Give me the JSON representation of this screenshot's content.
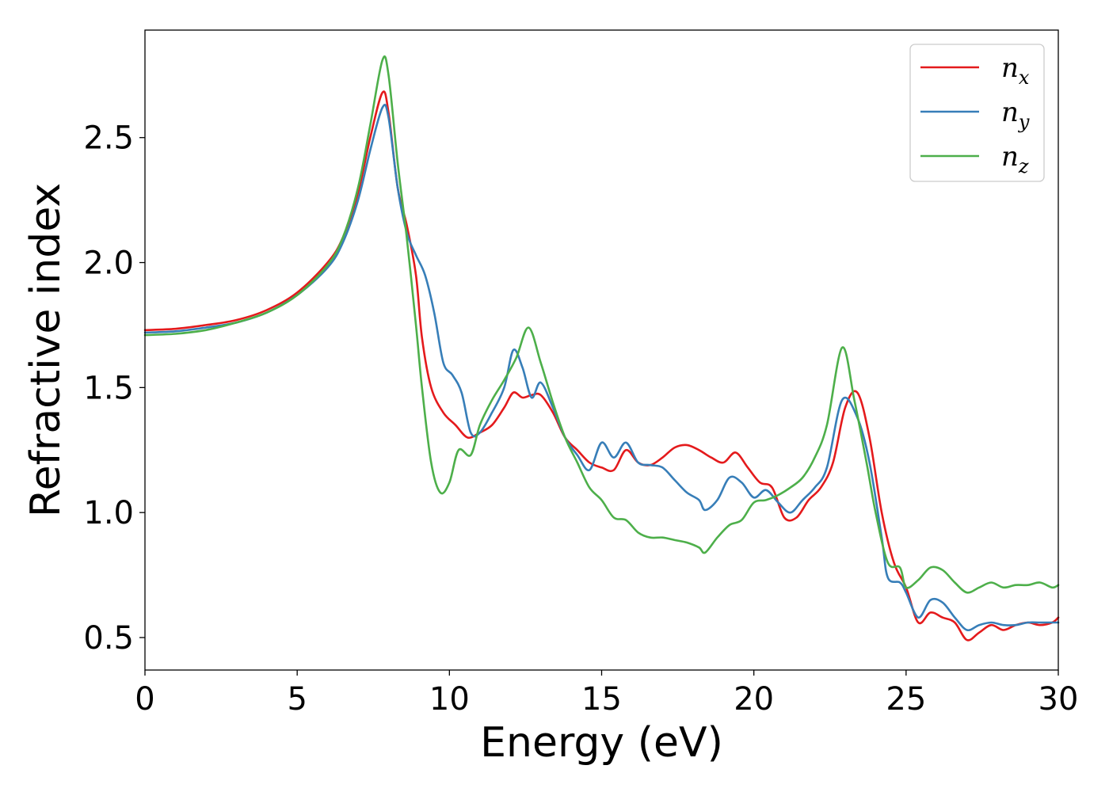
{
  "chart_data": {
    "type": "line",
    "title": "",
    "xlabel": "Energy (eV)",
    "ylabel": "Refractive index",
    "xlim": [
      0,
      30
    ],
    "ylim": [
      0.37,
      2.93
    ],
    "xticks": [
      0,
      5,
      10,
      15,
      20,
      25,
      30
    ],
    "xtick_labels": [
      "0",
      "5",
      "10",
      "15",
      "20",
      "25",
      "30"
    ],
    "yticks": [
      0.5,
      1.0,
      1.5,
      2.0,
      2.5
    ],
    "ytick_labels": [
      "0.5",
      "1.0",
      "1.5",
      "2.0",
      "2.5"
    ],
    "grid": false,
    "legend_position": "top-right",
    "series": [
      {
        "name": "n_x",
        "label_main": "n",
        "label_sub": "x",
        "color": "#e41a1c",
        "points": [
          [
            0,
            1.73
          ],
          [
            1,
            1.735
          ],
          [
            2,
            1.75
          ],
          [
            3,
            1.77
          ],
          [
            4,
            1.81
          ],
          [
            5,
            1.88
          ],
          [
            6,
            2.0
          ],
          [
            6.5,
            2.1
          ],
          [
            7,
            2.28
          ],
          [
            7.4,
            2.5
          ],
          [
            7.8,
            2.68
          ],
          [
            8.0,
            2.6
          ],
          [
            8.3,
            2.3
          ],
          [
            8.6,
            2.15
          ],
          [
            8.9,
            1.95
          ],
          [
            9.1,
            1.7
          ],
          [
            9.4,
            1.5
          ],
          [
            9.8,
            1.4
          ],
          [
            10.2,
            1.35
          ],
          [
            10.6,
            1.3
          ],
          [
            11.0,
            1.32
          ],
          [
            11.4,
            1.35
          ],
          [
            11.8,
            1.42
          ],
          [
            12.1,
            1.48
          ],
          [
            12.4,
            1.46
          ],
          [
            12.7,
            1.47
          ],
          [
            13.0,
            1.47
          ],
          [
            13.4,
            1.4
          ],
          [
            13.8,
            1.3
          ],
          [
            14.2,
            1.25
          ],
          [
            14.6,
            1.2
          ],
          [
            15.0,
            1.18
          ],
          [
            15.4,
            1.17
          ],
          [
            15.8,
            1.25
          ],
          [
            16.2,
            1.2
          ],
          [
            16.6,
            1.19
          ],
          [
            17.0,
            1.22
          ],
          [
            17.4,
            1.26
          ],
          [
            17.8,
            1.27
          ],
          [
            18.2,
            1.25
          ],
          [
            18.6,
            1.22
          ],
          [
            19.0,
            1.2
          ],
          [
            19.4,
            1.24
          ],
          [
            19.8,
            1.18
          ],
          [
            20.2,
            1.12
          ],
          [
            20.6,
            1.1
          ],
          [
            21.0,
            0.98
          ],
          [
            21.4,
            0.98
          ],
          [
            21.8,
            1.05
          ],
          [
            22.2,
            1.1
          ],
          [
            22.6,
            1.2
          ],
          [
            23.0,
            1.42
          ],
          [
            23.4,
            1.48
          ],
          [
            23.8,
            1.3
          ],
          [
            24.2,
            1.0
          ],
          [
            24.6,
            0.8
          ],
          [
            25.0,
            0.7
          ],
          [
            25.4,
            0.56
          ],
          [
            25.8,
            0.6
          ],
          [
            26.2,
            0.58
          ],
          [
            26.6,
            0.56
          ],
          [
            27.0,
            0.49
          ],
          [
            27.4,
            0.52
          ],
          [
            27.8,
            0.55
          ],
          [
            28.2,
            0.53
          ],
          [
            28.6,
            0.55
          ],
          [
            29.0,
            0.56
          ],
          [
            29.4,
            0.55
          ],
          [
            29.8,
            0.56
          ],
          [
            30,
            0.58
          ]
        ]
      },
      {
        "name": "n_y",
        "label_main": "n",
        "label_sub": "y",
        "color": "#377eb8",
        "points": [
          [
            0,
            1.72
          ],
          [
            1,
            1.725
          ],
          [
            2,
            1.74
          ],
          [
            3,
            1.76
          ],
          [
            4,
            1.8
          ],
          [
            5,
            1.87
          ],
          [
            6,
            1.98
          ],
          [
            6.5,
            2.08
          ],
          [
            7,
            2.25
          ],
          [
            7.4,
            2.45
          ],
          [
            7.8,
            2.62
          ],
          [
            8.0,
            2.58
          ],
          [
            8.3,
            2.3
          ],
          [
            8.6,
            2.12
          ],
          [
            8.9,
            2.03
          ],
          [
            9.2,
            1.95
          ],
          [
            9.5,
            1.8
          ],
          [
            9.8,
            1.6
          ],
          [
            10.1,
            1.55
          ],
          [
            10.4,
            1.48
          ],
          [
            10.7,
            1.32
          ],
          [
            11.0,
            1.32
          ],
          [
            11.4,
            1.4
          ],
          [
            11.8,
            1.5
          ],
          [
            12.1,
            1.65
          ],
          [
            12.4,
            1.58
          ],
          [
            12.7,
            1.46
          ],
          [
            13.0,
            1.52
          ],
          [
            13.4,
            1.42
          ],
          [
            13.8,
            1.3
          ],
          [
            14.2,
            1.23
          ],
          [
            14.6,
            1.17
          ],
          [
            15.0,
            1.28
          ],
          [
            15.4,
            1.22
          ],
          [
            15.8,
            1.28
          ],
          [
            16.2,
            1.2
          ],
          [
            16.6,
            1.19
          ],
          [
            17.0,
            1.18
          ],
          [
            17.4,
            1.13
          ],
          [
            17.8,
            1.08
          ],
          [
            18.2,
            1.05
          ],
          [
            18.4,
            1.01
          ],
          [
            18.8,
            1.05
          ],
          [
            19.2,
            1.14
          ],
          [
            19.6,
            1.12
          ],
          [
            20.0,
            1.06
          ],
          [
            20.4,
            1.09
          ],
          [
            20.8,
            1.04
          ],
          [
            21.2,
            1.0
          ],
          [
            21.6,
            1.05
          ],
          [
            22.0,
            1.1
          ],
          [
            22.4,
            1.18
          ],
          [
            22.9,
            1.45
          ],
          [
            23.4,
            1.38
          ],
          [
            23.8,
            1.2
          ],
          [
            24.2,
            0.9
          ],
          [
            24.4,
            0.74
          ],
          [
            24.8,
            0.72
          ],
          [
            25.0,
            0.68
          ],
          [
            25.4,
            0.58
          ],
          [
            25.8,
            0.65
          ],
          [
            26.2,
            0.64
          ],
          [
            26.6,
            0.58
          ],
          [
            27.0,
            0.53
          ],
          [
            27.4,
            0.55
          ],
          [
            27.8,
            0.56
          ],
          [
            28.2,
            0.55
          ],
          [
            28.6,
            0.55
          ],
          [
            29.0,
            0.56
          ],
          [
            29.4,
            0.56
          ],
          [
            29.8,
            0.56
          ],
          [
            30,
            0.56
          ]
        ]
      },
      {
        "name": "n_z",
        "label_main": "n",
        "label_sub": "z",
        "color": "#4daf4a",
        "points": [
          [
            0,
            1.71
          ],
          [
            1,
            1.715
          ],
          [
            2,
            1.73
          ],
          [
            3,
            1.76
          ],
          [
            4,
            1.8
          ],
          [
            5,
            1.87
          ],
          [
            6,
            1.99
          ],
          [
            6.5,
            2.1
          ],
          [
            7,
            2.3
          ],
          [
            7.4,
            2.55
          ],
          [
            7.8,
            2.81
          ],
          [
            8.0,
            2.75
          ],
          [
            8.3,
            2.4
          ],
          [
            8.6,
            2.1
          ],
          [
            8.9,
            1.75
          ],
          [
            9.1,
            1.5
          ],
          [
            9.4,
            1.2
          ],
          [
            9.7,
            1.08
          ],
          [
            10.0,
            1.12
          ],
          [
            10.3,
            1.25
          ],
          [
            10.7,
            1.23
          ],
          [
            11.0,
            1.35
          ],
          [
            11.4,
            1.45
          ],
          [
            11.8,
            1.53
          ],
          [
            12.2,
            1.62
          ],
          [
            12.6,
            1.74
          ],
          [
            13.0,
            1.6
          ],
          [
            13.4,
            1.44
          ],
          [
            13.8,
            1.3
          ],
          [
            14.2,
            1.2
          ],
          [
            14.6,
            1.1
          ],
          [
            15.0,
            1.05
          ],
          [
            15.4,
            0.98
          ],
          [
            15.8,
            0.97
          ],
          [
            16.2,
            0.92
          ],
          [
            16.6,
            0.9
          ],
          [
            17.0,
            0.9
          ],
          [
            17.4,
            0.89
          ],
          [
            17.8,
            0.88
          ],
          [
            18.2,
            0.86
          ],
          [
            18.4,
            0.84
          ],
          [
            18.8,
            0.9
          ],
          [
            19.2,
            0.95
          ],
          [
            19.6,
            0.97
          ],
          [
            20.0,
            1.04
          ],
          [
            20.4,
            1.05
          ],
          [
            20.8,
            1.07
          ],
          [
            21.2,
            1.1
          ],
          [
            21.6,
            1.14
          ],
          [
            22.0,
            1.22
          ],
          [
            22.4,
            1.35
          ],
          [
            22.9,
            1.66
          ],
          [
            23.3,
            1.45
          ],
          [
            23.7,
            1.2
          ],
          [
            24.0,
            1.0
          ],
          [
            24.4,
            0.8
          ],
          [
            24.8,
            0.78
          ],
          [
            25.0,
            0.7
          ],
          [
            25.4,
            0.73
          ],
          [
            25.8,
            0.78
          ],
          [
            26.2,
            0.77
          ],
          [
            26.6,
            0.72
          ],
          [
            27.0,
            0.68
          ],
          [
            27.4,
            0.7
          ],
          [
            27.8,
            0.72
          ],
          [
            28.2,
            0.7
          ],
          [
            28.6,
            0.71
          ],
          [
            29.0,
            0.71
          ],
          [
            29.4,
            0.72
          ],
          [
            29.8,
            0.7
          ],
          [
            30,
            0.71
          ]
        ]
      }
    ]
  }
}
